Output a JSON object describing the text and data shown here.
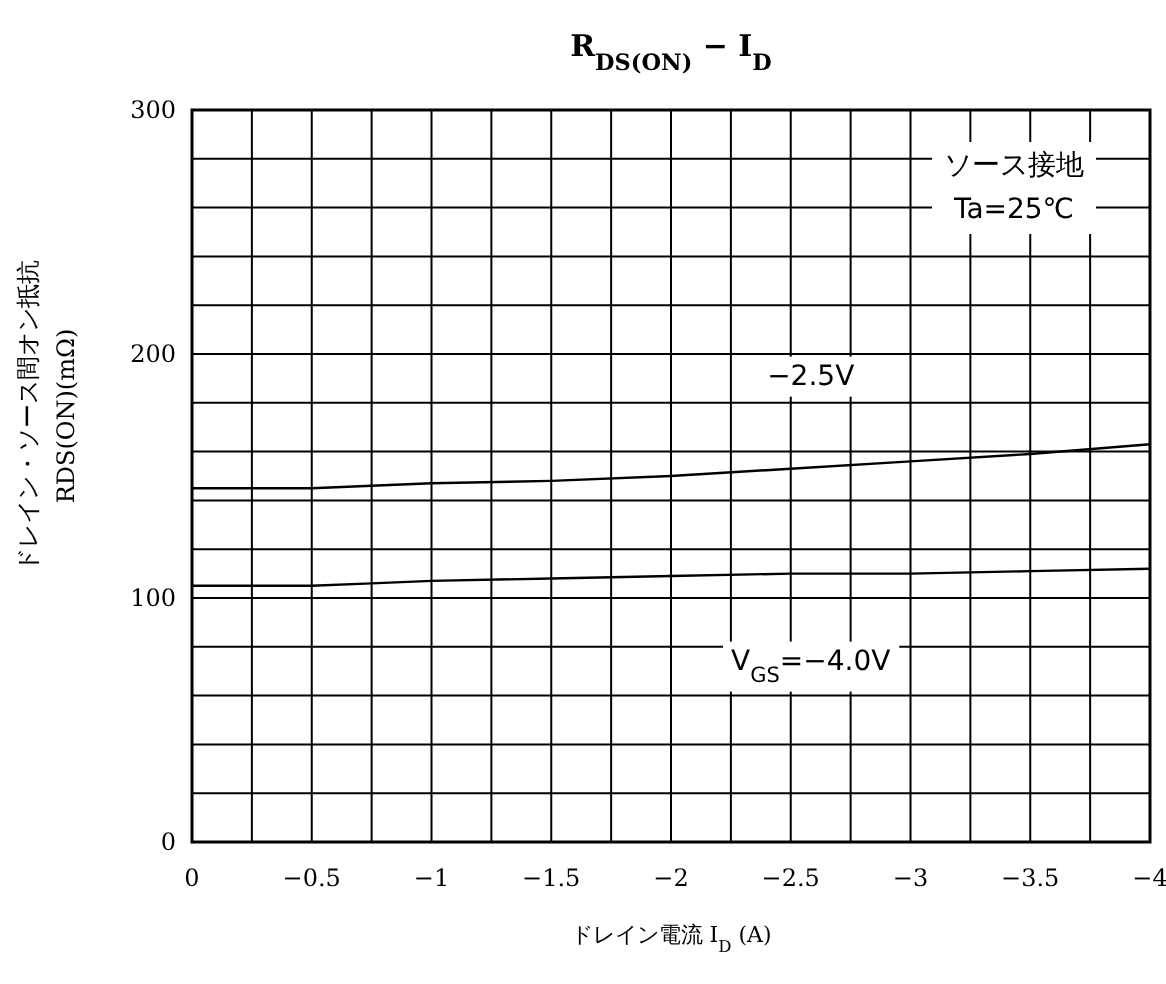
{
  "chart_data": {
    "type": "line",
    "title": "R$_{DS(ON)}$ − I$_{D}$",
    "xlabel": "ドレイン電流 I$_{D}$ (A)",
    "ylabel": "ドレイン・ソース間オン抵抗\nRDS(ON)(mΩ)",
    "annotations": [
      "ソース接地",
      "Ta=25℃"
    ],
    "xlim": [
      0,
      -4
    ],
    "ylim": [
      0,
      300
    ],
    "xticks": [
      0,
      {
        "value": -0.25,
        "label": null
      },
      {
        "value": -0.5,
        "label": "−0.5"
      },
      {
        "value": -0.75,
        "label": null
      },
      {
        "value": -1,
        "label": "−1"
      },
      {
        "value": -1.25,
        "label": null
      },
      {
        "value": -1.5,
        "label": "−1.5"
      },
      {
        "value": -1.75,
        "label": null
      },
      {
        "value": -2,
        "label": "−2"
      },
      {
        "value": -2.25,
        "label": null
      },
      {
        "value": -2.5,
        "label": "−2.5"
      },
      {
        "value": -2.75,
        "label": null
      },
      {
        "value": -3,
        "label": "−3"
      },
      {
        "value": -3.25,
        "label": null
      },
      {
        "value": -3.5,
        "label": "−3.5"
      },
      {
        "value": -3.75,
        "label": null
      },
      {
        "value": -4,
        "label": "−4"
      }
    ],
    "yticks": [
      0,
      {
        "value": 20,
        "label": null
      },
      {
        "value": 40,
        "label": null
      },
      {
        "value": 60,
        "label": null
      },
      {
        "value": 80,
        "label": null
      },
      100,
      {
        "value": 120,
        "label": null
      },
      {
        "value": 140,
        "label": null
      },
      {
        "value": 160,
        "label": null
      },
      {
        "value": 180,
        "label": null
      },
      200,
      {
        "value": 220,
        "label": null
      },
      {
        "value": 240,
        "label": null
      },
      {
        "value": 260,
        "label": null
      },
      {
        "value": 280,
        "label": null
      },
      300
    ],
    "grid": true,
    "marker": "none",
    "line_style": "solid",
    "x": [
      0,
      -0.5,
      -0.75,
      -1,
      -1.5,
      -2,
      -2.5,
      -3,
      -3.5,
      -4
    ],
    "series": [
      {
        "name": "−2.5V",
        "color": "#000000",
        "values": [
          145,
          145,
          146,
          147,
          148,
          150,
          153,
          156,
          159,
          163
        ]
      },
      {
        "name": "V$_{GS}$=−4.0V",
        "color": "#000000",
        "values": [
          105,
          105,
          106,
          107,
          108,
          109,
          110,
          110,
          111,
          112
        ]
      }
    ]
  }
}
